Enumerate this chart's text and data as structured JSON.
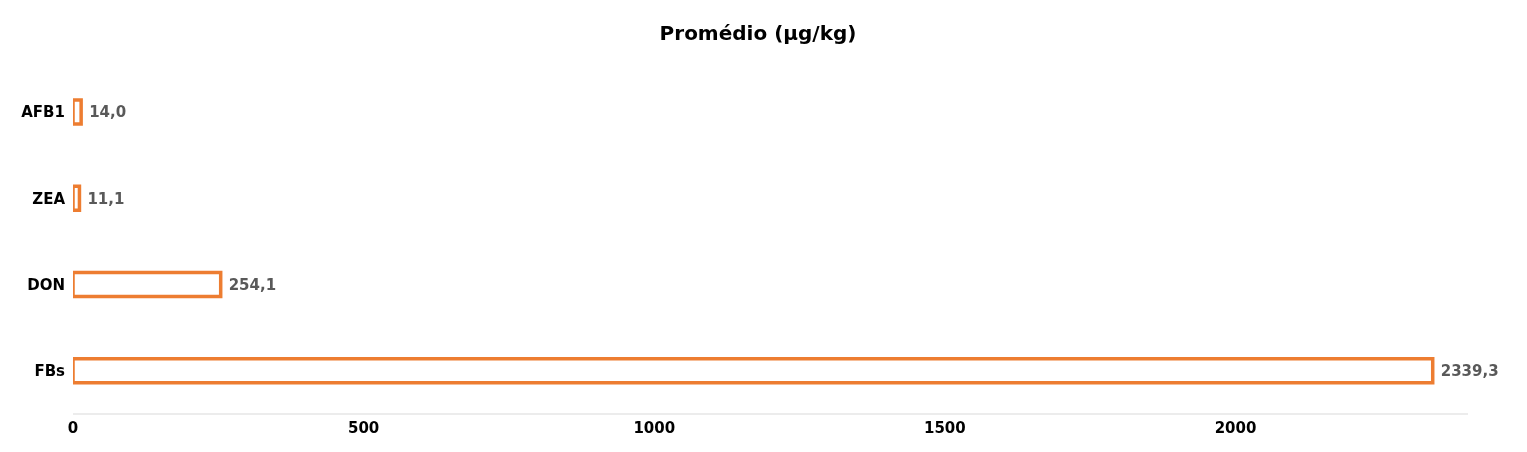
{
  "chart_data": {
    "type": "bar",
    "orientation": "horizontal",
    "title": "Promédio (µg/kg)",
    "categories": [
      "AFB1",
      "ZEA",
      "DON",
      "FBs"
    ],
    "values": [
      14.0,
      11.1,
      254.1,
      2339.3
    ],
    "value_labels": [
      "14,0",
      "11,1",
      "254,1",
      "2339,3"
    ],
    "color": "#ed7d31",
    "xlim": [
      0,
      2400
    ],
    "xticks": [
      0,
      500,
      1000,
      1500,
      2000
    ],
    "grid": false,
    "legend": false
  }
}
